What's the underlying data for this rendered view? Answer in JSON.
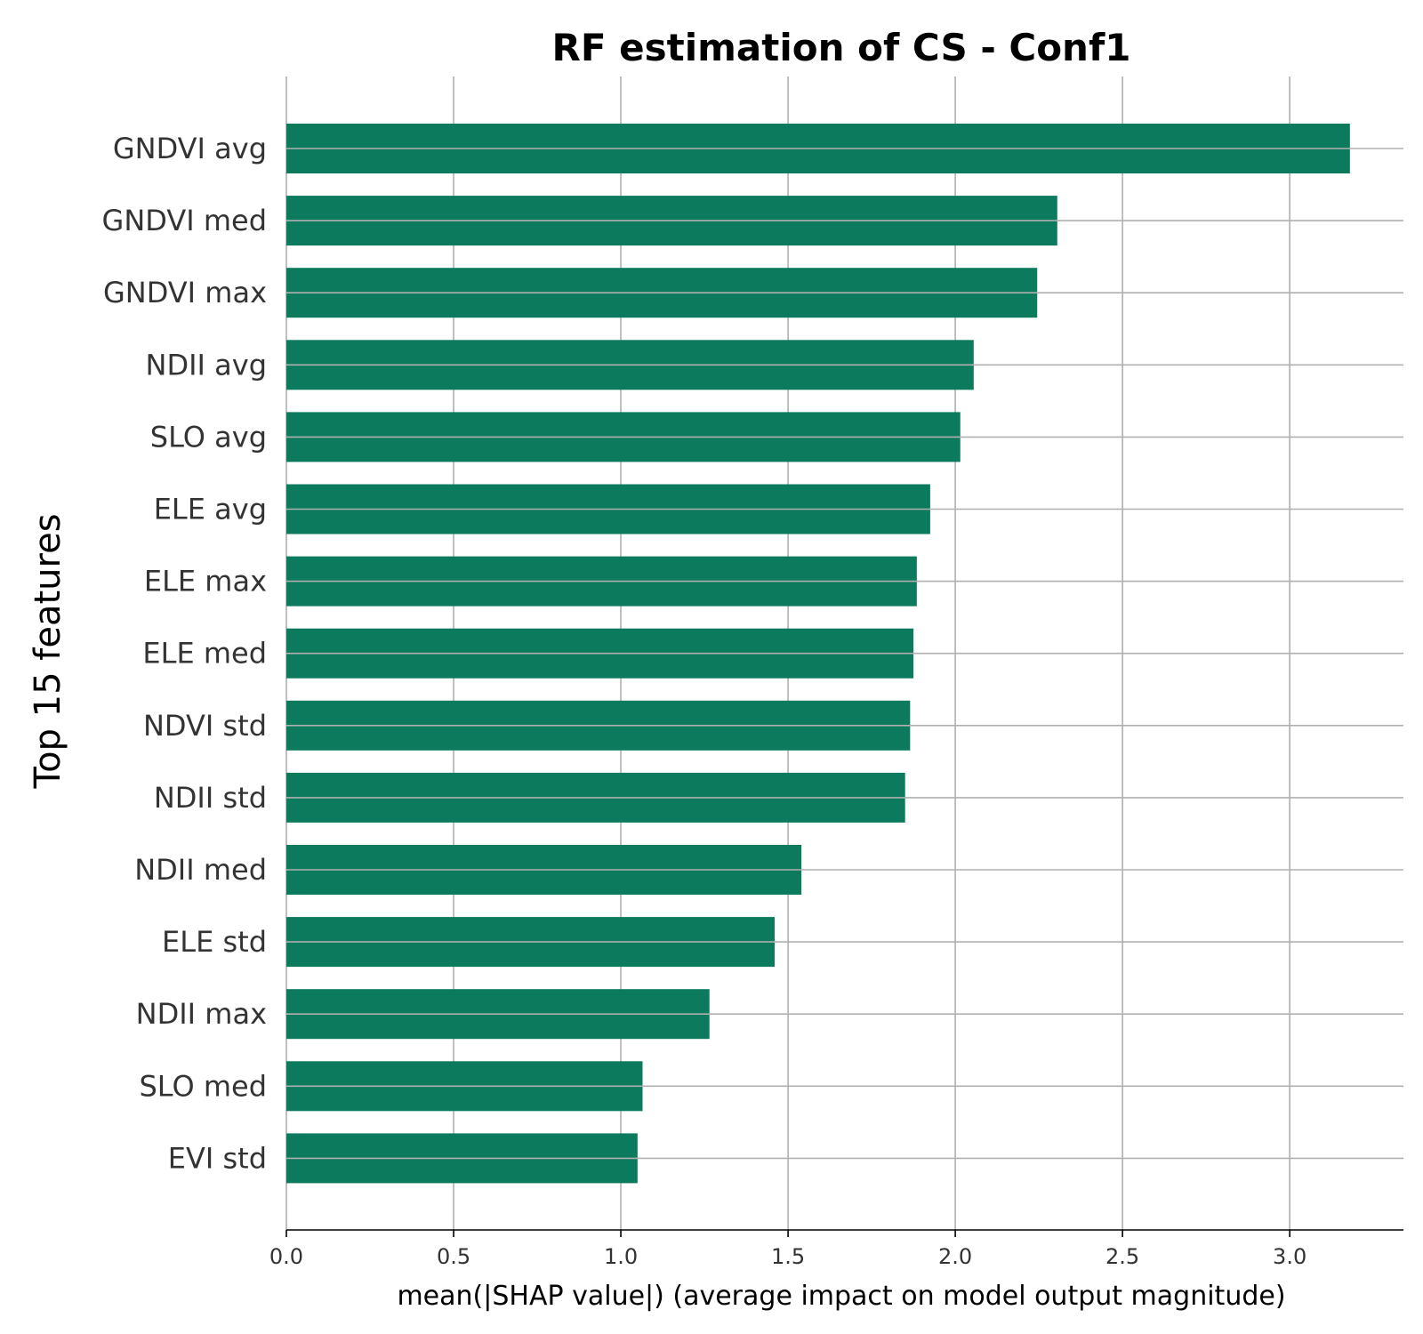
{
  "chart_data": {
    "type": "bar",
    "orientation": "horizontal",
    "title": "RF estimation of CS - Conf1",
    "xlabel": "mean(|SHAP value|) (average impact on model output magnitude)",
    "ylabel": "Top 15 features",
    "categories": [
      "GNDVI avg",
      "GNDVI med",
      "GNDVI max",
      "NDII avg",
      "SLO avg",
      "ELE avg",
      "ELE max",
      "ELE med",
      "NDVI std",
      "NDII std",
      "NDII med",
      "ELE std",
      "NDII max",
      "SLO med",
      "EVI std"
    ],
    "values": [
      3.18,
      2.305,
      2.245,
      2.055,
      2.015,
      1.925,
      1.885,
      1.875,
      1.865,
      1.85,
      1.54,
      1.46,
      1.265,
      1.065,
      1.05
    ],
    "xticks": [
      0.0,
      0.5,
      1.0,
      1.5,
      2.0,
      2.5,
      3.0
    ],
    "xtick_labels": [
      "0.0",
      "0.5",
      "1.0",
      "1.5",
      "2.0",
      "2.5",
      "3.0"
    ],
    "xlim": [
      0,
      3.34
    ],
    "grid": true,
    "bar_color": "#0b7a5d"
  }
}
